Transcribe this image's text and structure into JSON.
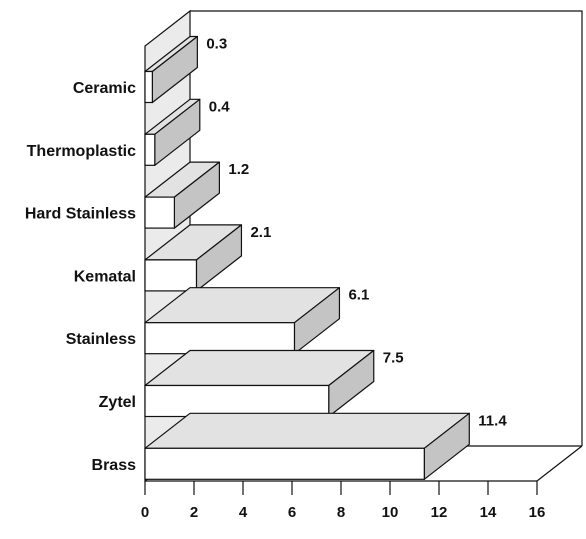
{
  "chart_data": {
    "type": "bar",
    "orientation": "horizontal",
    "three_d": true,
    "categories": [
      "Ceramic",
      "Thermoplastic",
      "Hard Stainless",
      "Kematal",
      "Stainless",
      "Zytel",
      "Brass"
    ],
    "values": [
      0.3,
      0.4,
      1.2,
      2.1,
      6.1,
      7.5,
      11.4
    ],
    "value_labels": [
      "0.3",
      "0.4",
      "1.2",
      "2.1",
      "6.1",
      "7.5",
      "11.4"
    ],
    "xticks": [
      "0",
      "2",
      "4",
      "6",
      "8",
      "10",
      "12",
      "14",
      "16"
    ],
    "xlim": [
      0,
      16
    ],
    "grid": false,
    "legend": "none",
    "colors": {
      "front": "#ffffff",
      "top": "#e2e2e2",
      "side": "#c4c4c4",
      "wall": "#ebebeb",
      "stroke": "#111111"
    }
  }
}
